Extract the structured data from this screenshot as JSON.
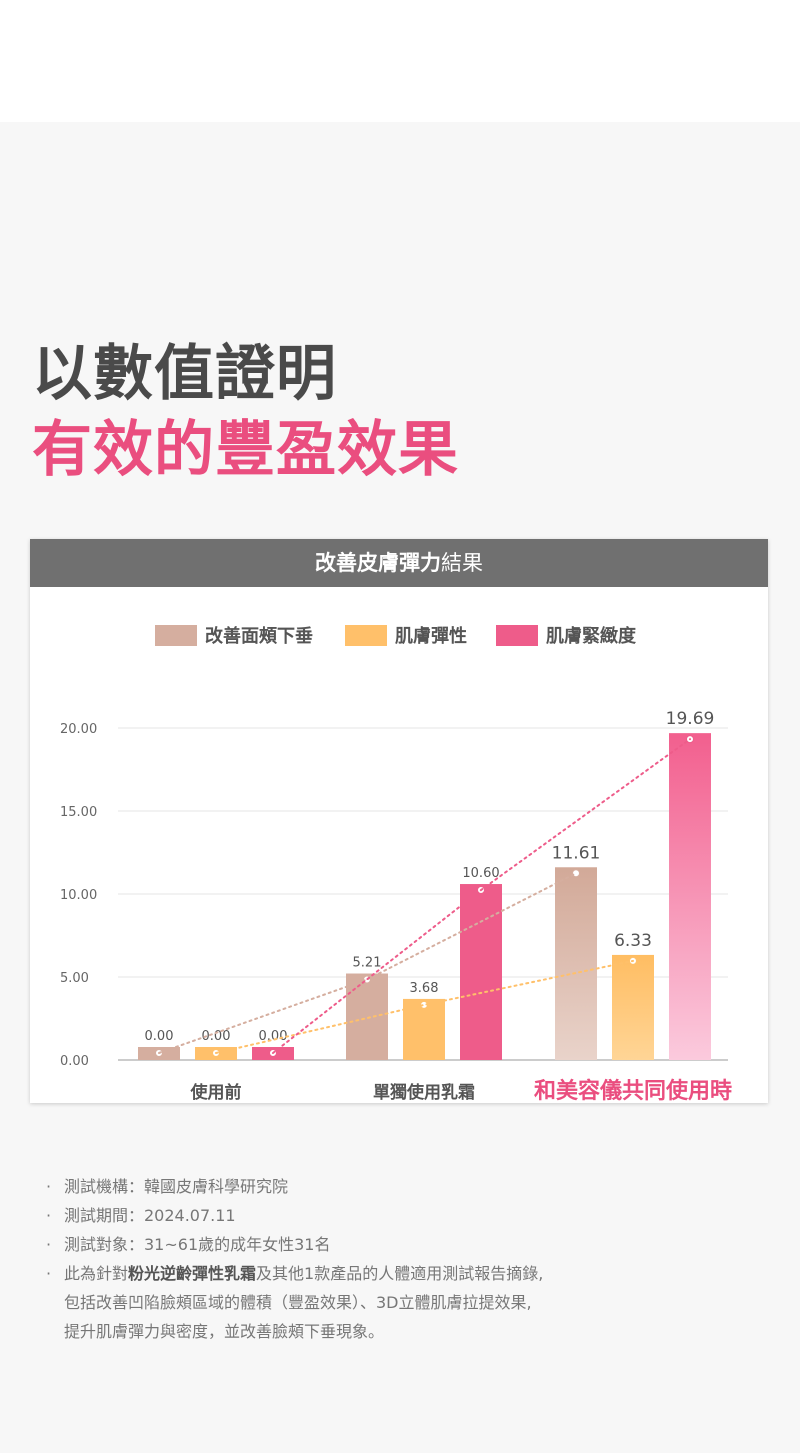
{
  "headline": {
    "line1": "以數值證明",
    "line2": "有效的豐盈效果"
  },
  "card": {
    "title_bold": "改善皮膚彈力",
    "title_rest": "結果"
  },
  "colors": {
    "accent": "#ea4e7f",
    "series": [
      "#d5ae9f",
      "#ffc06a",
      "#ee5c8a"
    ]
  },
  "chart_data": {
    "type": "bar",
    "title": "改善皮膚彈力結果",
    "categories": [
      "使用前",
      "單獨使用乳霜",
      "和美容儀共同使用時"
    ],
    "highlight_category": 2,
    "series": [
      {
        "name": "改善面頰下垂",
        "values": [
          0.0,
          5.21,
          11.61
        ],
        "labels": [
          "0.00",
          "5.21",
          "11.61"
        ]
      },
      {
        "name": "肌膚彈性",
        "values": [
          0.0,
          3.68,
          6.33
        ],
        "labels": [
          "0.00",
          "3.68",
          "6.33"
        ]
      },
      {
        "name": "肌膚緊緻度",
        "values": [
          0.0,
          10.6,
          19.69
        ],
        "labels": [
          "0.00",
          "10.60",
          "19.69"
        ]
      }
    ],
    "y_ticks": [
      "0.00",
      "5.00",
      "10.00",
      "15.00",
      "20.00"
    ],
    "ylim": [
      0,
      20
    ],
    "trend_lines": true,
    "grid": true,
    "legend": "top"
  },
  "footnotes": [
    {
      "text": "測試機構：韓國皮膚科學研究院"
    },
    {
      "text": "測試期間：2024.07.11"
    },
    {
      "text": "測試對象：31~61歲的成年女性31名"
    },
    {
      "pre": "此為針對",
      "bold": "粉光逆齡彈性乳霜",
      "post": "及其他1款產品的人體適用測試報告摘錄,",
      "line2": "包括改善凹陷臉頰區域的體積（豐盈效果）、3D立體肌膚拉提效果,",
      "line3": "提升肌膚彈力與密度，並改善臉頰下垂現象。"
    }
  ]
}
